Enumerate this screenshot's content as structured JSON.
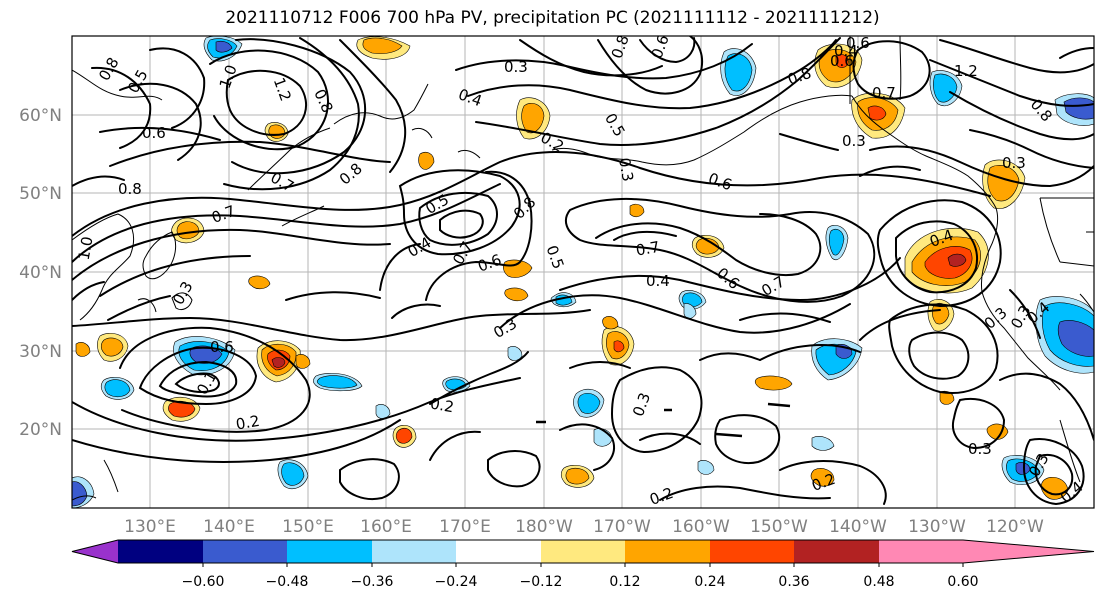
{
  "title": "2021110712 F006 700 hPa PV, precipitation PC (2021111112 - 2021111212)",
  "axes": {
    "lat_labels": [
      "60°N",
      "50°N",
      "40°N",
      "30°N",
      "20°N"
    ],
    "lon_labels": [
      "130°E",
      "140°E",
      "150°E",
      "160°E",
      "170°E",
      "180°W",
      "170°W",
      "160°W",
      "150°W",
      "140°W",
      "130°W",
      "120°W"
    ]
  },
  "colorbar": {
    "colors": [
      "#9932cc",
      "#000080",
      "#3a5bcf",
      "#00bfff",
      "#aee4fb",
      "#ffffff",
      "#ffe97f",
      "#ffa500",
      "#ff4500",
      "#b22222",
      "#ff88b4"
    ],
    "tick_labels": [
      "−0.60",
      "−0.48",
      "−0.36",
      "−0.24",
      "−0.12",
      "0.12",
      "0.24",
      "0.36",
      "0.48",
      "0.60"
    ]
  },
  "contour_labels": [
    "0.8",
    "0.5",
    "1.0",
    "0.8",
    "1.2",
    "0.6",
    "0.7",
    "0.8",
    "0.8",
    "1.0",
    "0.7",
    "0.3",
    "0.5",
    "0.4",
    "0.7",
    "0.6",
    "0.5",
    "0.8",
    "0.4",
    "0.3",
    "0.2",
    "0.5",
    "0.3",
    "0.6",
    "0.7",
    "0.6",
    "0.4",
    "0.7",
    "0.3",
    "0.3",
    "0.2",
    "0.2",
    "0.3",
    "0.2",
    "0.4",
    "0.3",
    "0.3",
    "1.2",
    "0.8",
    "0.3",
    "0.4",
    "0.3",
    "0.3",
    "0.4",
    "0.6",
    "0.7",
    "0.2",
    "0.6",
    "0.8",
    "0.8",
    "0.6",
    "0.4",
    "0.1",
    "0.6"
  ]
}
